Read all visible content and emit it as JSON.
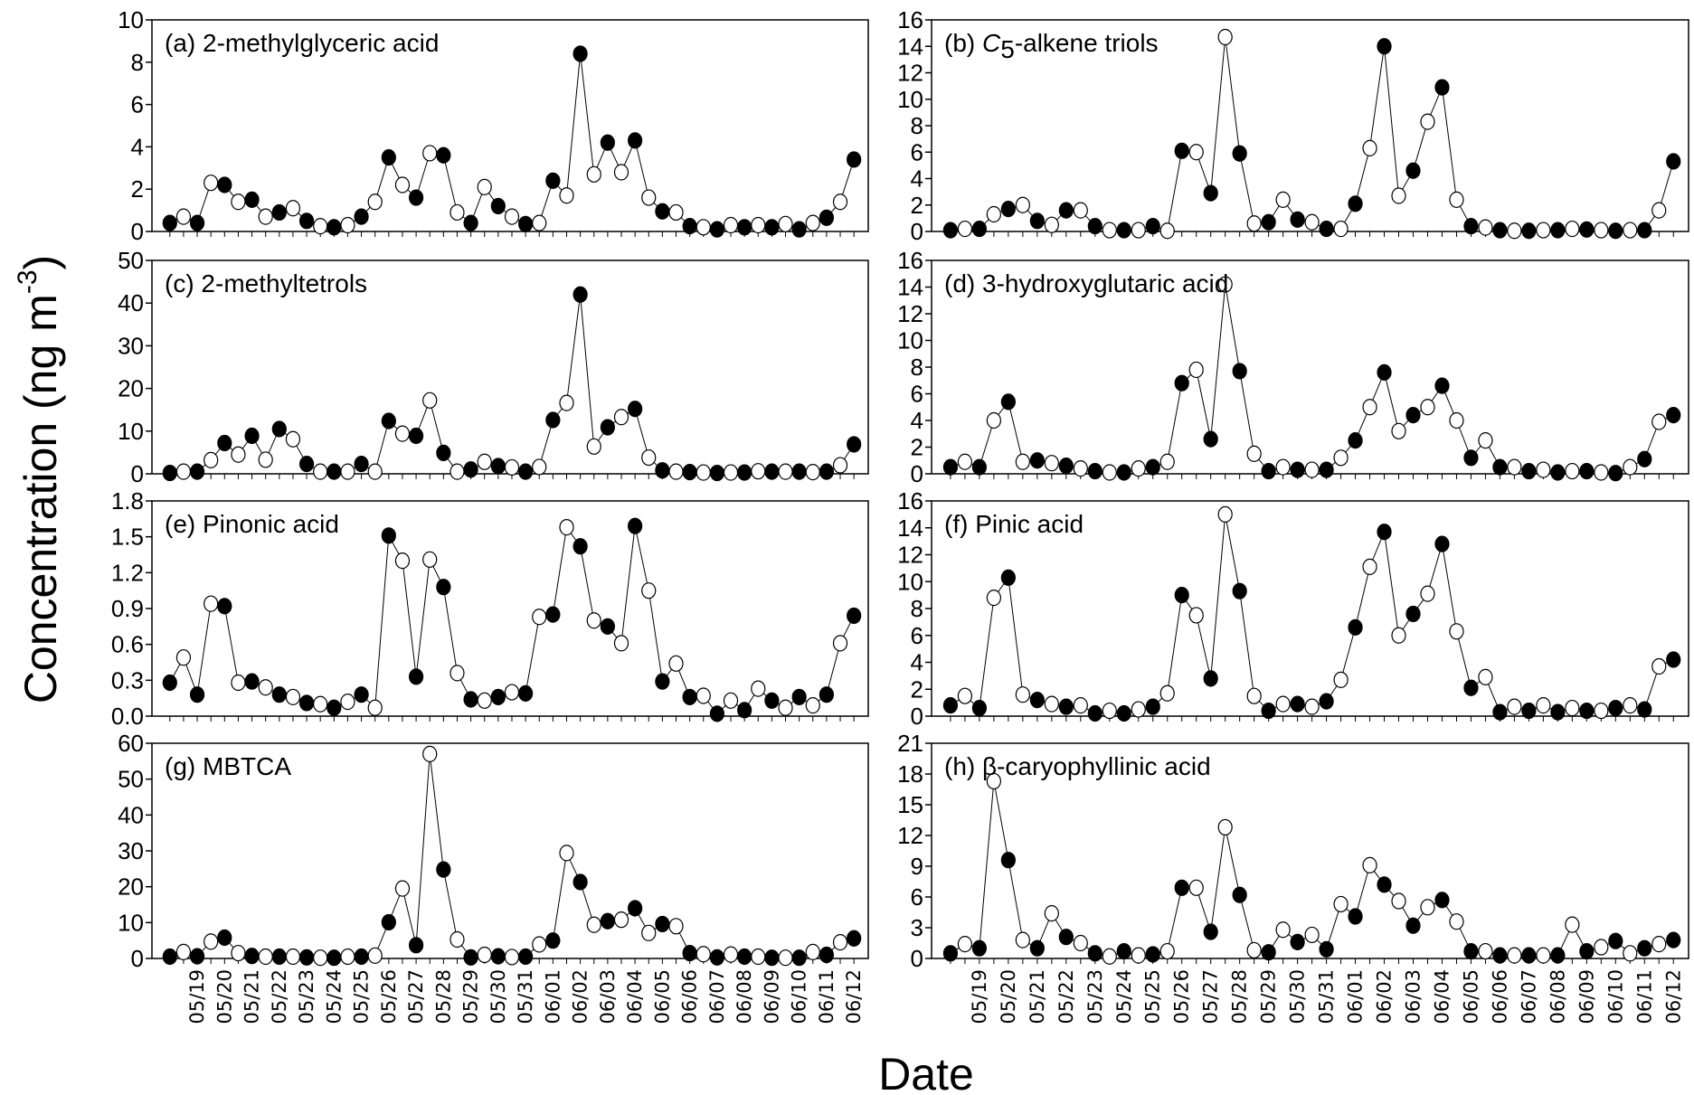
{
  "figure": {
    "ylabel": "Concentration  (ng m",
    "ylabel_sup": "-3",
    "ylabel_close": ")",
    "xlabel": "Date"
  },
  "chart_data": {
    "type": "line",
    "marker_sequence": "FOFOFOFOFOFOFOFOFOFOFOFOFOFOFOFOFOFOFOFOFOFOFOFOFOF",
    "marker_colors": {
      "filled": "#000000",
      "open": "#ffffff",
      "line": "#000000"
    },
    "x_tick_labels": [
      "05/19",
      "05/20",
      "05/21",
      "05/22",
      "05/23",
      "05/24",
      "05/25",
      "05/26",
      "05/27",
      "05/28",
      "05/29",
      "05/30",
      "05/31",
      "06/01",
      "06/02",
      "06/03",
      "06/04",
      "06/05",
      "06/06",
      "06/07",
      "06/08",
      "06/09",
      "06/10",
      "06/11",
      "06/12"
    ],
    "panels": [
      {
        "title": "(a) 2-methylglyceric acid",
        "ylim": [
          0,
          10
        ],
        "yticks": [
          "0",
          "2",
          "4",
          "6",
          "8",
          "10"
        ],
        "values": [
          0.4,
          0.7,
          0.4,
          2.3,
          2.2,
          1.4,
          1.5,
          0.7,
          0.9,
          1.1,
          0.5,
          0.25,
          0.2,
          0.3,
          0.7,
          1.4,
          3.5,
          2.2,
          1.6,
          3.7,
          3.6,
          0.9,
          0.4,
          2.1,
          1.2,
          0.7,
          0.35,
          0.4,
          2.4,
          1.7,
          8.4,
          2.7,
          4.2,
          2.8,
          4.3,
          1.6,
          0.95,
          0.9,
          0.25,
          0.2,
          0.1,
          0.3,
          0.2,
          0.3,
          0.2,
          0.35,
          0.1,
          0.4,
          0.65,
          1.4,
          3.4
        ]
      },
      {
        "title": "(b) C5-alkene triols",
        "ylim": [
          0,
          16
        ],
        "yticks": [
          "0",
          "2",
          "4",
          "6",
          "8",
          "10",
          "12",
          "14",
          "16"
        ],
        "values": [
          0.1,
          0.2,
          0.2,
          1.3,
          1.7,
          2.0,
          0.8,
          0.5,
          1.6,
          1.6,
          0.4,
          0.1,
          0.1,
          0.1,
          0.4,
          0.05,
          6.1,
          6.0,
          2.9,
          14.7,
          5.9,
          0.6,
          0.7,
          2.4,
          0.9,
          0.7,
          0.2,
          0.2,
          2.1,
          6.3,
          14.0,
          2.7,
          4.6,
          8.3,
          10.9,
          2.4,
          0.4,
          0.3,
          0.1,
          0.05,
          0.05,
          0.1,
          0.1,
          0.2,
          0.15,
          0.1,
          0.05,
          0.1,
          0.1,
          1.6,
          5.3
        ]
      },
      {
        "title": "(c) 2-methyltetrols",
        "ylim": [
          0,
          50
        ],
        "yticks": [
          "0",
          "10",
          "20",
          "30",
          "40",
          "50"
        ],
        "values": [
          0.2,
          0.5,
          0.5,
          3.2,
          7.2,
          4.5,
          8.9,
          3.3,
          10.5,
          8.1,
          2.3,
          0.5,
          0.5,
          0.5,
          2.3,
          0.5,
          12.4,
          9.4,
          8.9,
          17.2,
          4.9,
          0.5,
          1.0,
          2.8,
          1.8,
          1.5,
          0.5,
          1.6,
          12.6,
          16.6,
          42.0,
          6.4,
          10.9,
          13.3,
          15.2,
          3.8,
          0.8,
          0.5,
          0.4,
          0.3,
          0.2,
          0.3,
          0.3,
          0.6,
          0.5,
          0.5,
          0.5,
          0.4,
          0.5,
          2.0,
          6.9
        ]
      },
      {
        "title": "(d) 3-hydroxyglutaric acid",
        "ylim": [
          0,
          16
        ],
        "yticks": [
          "0",
          "2",
          "4",
          "6",
          "8",
          "10",
          "12",
          "14",
          "16"
        ],
        "values": [
          0.5,
          0.9,
          0.5,
          4.0,
          5.4,
          0.9,
          1.0,
          0.8,
          0.6,
          0.4,
          0.2,
          0.1,
          0.1,
          0.4,
          0.5,
          0.9,
          6.8,
          7.8,
          2.6,
          14.2,
          7.7,
          1.5,
          0.2,
          0.5,
          0.3,
          0.3,
          0.3,
          1.2,
          2.5,
          5.0,
          7.6,
          3.2,
          4.4,
          5.0,
          6.6,
          4.0,
          1.2,
          2.5,
          0.5,
          0.5,
          0.2,
          0.3,
          0.1,
          0.2,
          0.2,
          0.1,
          0.05,
          0.5,
          1.1,
          3.9,
          4.4
        ]
      },
      {
        "title": "(e) Pinonic acid",
        "ylim": [
          0,
          1.8
        ],
        "yticks": [
          "0.0",
          "0.3",
          "0.6",
          "0.9",
          "1.2",
          "1.5",
          "1.8"
        ],
        "values": [
          0.28,
          0.49,
          0.18,
          0.94,
          0.92,
          0.28,
          0.29,
          0.24,
          0.18,
          0.16,
          0.11,
          0.1,
          0.07,
          0.12,
          0.18,
          0.07,
          1.51,
          1.3,
          0.33,
          1.31,
          1.08,
          0.36,
          0.14,
          0.13,
          0.16,
          0.2,
          0.19,
          0.83,
          0.85,
          1.58,
          1.42,
          0.8,
          0.75,
          0.61,
          1.59,
          1.05,
          0.29,
          0.44,
          0.16,
          0.17,
          0.02,
          0.13,
          0.05,
          0.23,
          0.13,
          0.07,
          0.16,
          0.09,
          0.18,
          0.61,
          0.84
        ]
      },
      {
        "title": "(f) Pinic acid",
        "ylim": [
          0,
          16
        ],
        "yticks": [
          "0",
          "2",
          "4",
          "6",
          "8",
          "10",
          "12",
          "14",
          "16"
        ],
        "values": [
          0.8,
          1.5,
          0.6,
          8.8,
          10.3,
          1.6,
          1.2,
          0.9,
          0.7,
          0.8,
          0.2,
          0.4,
          0.2,
          0.5,
          0.7,
          1.7,
          9.0,
          7.5,
          2.8,
          15.0,
          9.3,
          1.5,
          0.4,
          0.9,
          0.9,
          0.7,
          1.1,
          2.7,
          6.6,
          11.1,
          13.7,
          6.0,
          7.6,
          9.1,
          12.8,
          6.3,
          2.1,
          2.9,
          0.3,
          0.7,
          0.4,
          0.8,
          0.3,
          0.6,
          0.4,
          0.4,
          0.6,
          0.8,
          0.5,
          3.7,
          4.2
        ]
      },
      {
        "title": "(g)  MBTCA",
        "ylim": [
          0,
          60
        ],
        "yticks": [
          "0",
          "10",
          "20",
          "30",
          "40",
          "50",
          "60"
        ],
        "values": [
          0.5,
          1.8,
          0.6,
          4.7,
          5.8,
          1.5,
          0.7,
          0.5,
          0.5,
          0.5,
          0.3,
          0.2,
          0.2,
          0.5,
          0.5,
          0.8,
          10.1,
          19.5,
          3.7,
          57.0,
          24.8,
          5.3,
          0.3,
          1.0,
          0.6,
          0.4,
          0.5,
          3.9,
          5.0,
          29.4,
          21.3,
          9.4,
          10.4,
          10.8,
          14.0,
          7.1,
          9.6,
          9.0,
          1.5,
          1.2,
          0.3,
          1.1,
          0.5,
          0.5,
          0.2,
          0.2,
          0.2,
          1.8,
          1.0,
          4.5,
          5.6
        ]
      },
      {
        "title": "(h) β-caryophyllinic acid",
        "ylim": [
          0,
          21
        ],
        "yticks": [
          "0",
          "3",
          "6",
          "9",
          "12",
          "15",
          "18",
          "21"
        ],
        "values": [
          0.5,
          1.4,
          1.0,
          17.3,
          9.6,
          1.8,
          1.0,
          4.4,
          2.1,
          1.5,
          0.5,
          0.2,
          0.7,
          0.3,
          0.4,
          0.7,
          6.9,
          6.9,
          2.6,
          12.8,
          6.2,
          0.8,
          0.6,
          2.8,
          1.6,
          2.3,
          0.9,
          5.3,
          4.1,
          9.1,
          7.2,
          5.6,
          3.2,
          5.0,
          5.7,
          3.6,
          0.7,
          0.7,
          0.3,
          0.3,
          0.3,
          0.3,
          0.3,
          3.3,
          0.7,
          1.1,
          1.7,
          0.5,
          1.0,
          1.4,
          1.8
        ]
      }
    ]
  }
}
